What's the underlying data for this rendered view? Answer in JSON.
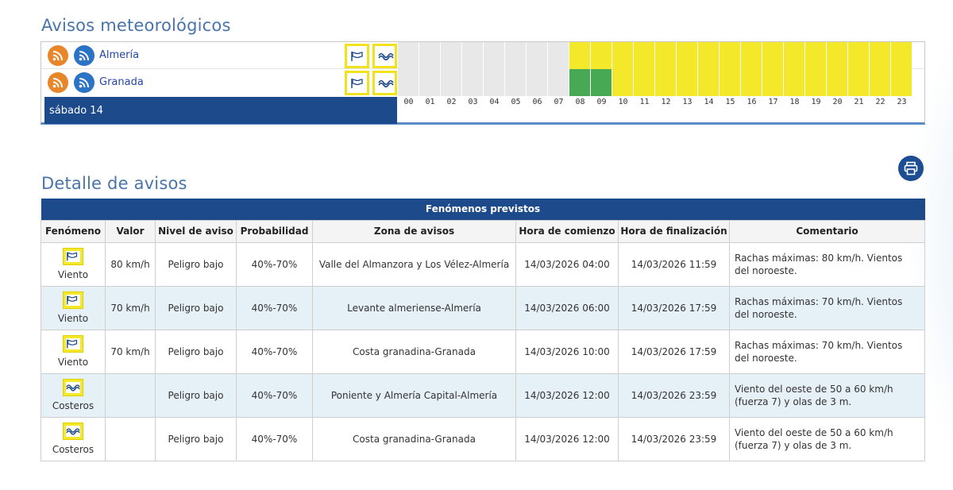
{
  "avisos_title": "Avisos meteorológicos",
  "detalle_title": "Detalle de avisos",
  "timeline": {
    "provinces": [
      {
        "name": "Almería",
        "hour_levels": [
          "grey",
          "grey",
          "grey",
          "grey",
          "grey",
          "grey",
          "grey",
          "grey",
          "yellow",
          "yellow",
          "yellow",
          "yellow",
          "yellow",
          "yellow",
          "yellow",
          "yellow",
          "yellow",
          "yellow",
          "yellow",
          "yellow",
          "yellow",
          "yellow",
          "yellow",
          "yellow"
        ]
      },
      {
        "name": "Granada",
        "hour_levels": [
          "grey",
          "grey",
          "grey",
          "grey",
          "grey",
          "grey",
          "grey",
          "grey",
          "green",
          "green",
          "yellow",
          "yellow",
          "yellow",
          "yellow",
          "yellow",
          "yellow",
          "yellow",
          "yellow",
          "yellow",
          "yellow",
          "yellow",
          "yellow",
          "yellow",
          "yellow"
        ]
      }
    ],
    "day_label": "sábado 14",
    "hours": [
      "00",
      "01",
      "02",
      "03",
      "04",
      "05",
      "06",
      "07",
      "08",
      "09",
      "10",
      "11",
      "12",
      "13",
      "14",
      "15",
      "16",
      "17",
      "18",
      "19",
      "20",
      "21",
      "22",
      "23"
    ],
    "level_colors": {
      "grey": "#e8e8e8",
      "yellow": "#f4e82a",
      "green": "#48a955"
    }
  },
  "table": {
    "caption": "Fenómenos previstos",
    "headers": [
      "Fenómeno",
      "Valor",
      "Nivel de aviso",
      "Probabilidad",
      "Zona de avisos",
      "Hora de comienzo",
      "Hora de finalización",
      "Comentario"
    ],
    "rows": [
      {
        "icon": "wind-icon",
        "fenomeno": "Viento",
        "valor": "80 km/h",
        "nivel": "Peligro bajo",
        "prob": "40%-70%",
        "zona": "Valle del Almanzora y Los Vélez-Almería",
        "inicio": "14/03/2026 04:00",
        "fin": "14/03/2026 11:59",
        "comentario": "Rachas máximas: 80 km/h. Vientos del noroeste."
      },
      {
        "icon": "wind-icon",
        "fenomeno": "Viento",
        "valor": "70 km/h",
        "nivel": "Peligro bajo",
        "prob": "40%-70%",
        "zona": "Levante almeriense-Almería",
        "inicio": "14/03/2026 06:00",
        "fin": "14/03/2026 17:59",
        "comentario": "Rachas máximas: 70 km/h. Vientos del noroeste."
      },
      {
        "icon": "wind-icon",
        "fenomeno": "Viento",
        "valor": "70 km/h",
        "nivel": "Peligro bajo",
        "prob": "40%-70%",
        "zona": "Costa granadina-Granada",
        "inicio": "14/03/2026 10:00",
        "fin": "14/03/2026 17:59",
        "comentario": "Rachas máximas: 70 km/h. Vientos del noroeste."
      },
      {
        "icon": "waves-icon",
        "fenomeno": "Costeros",
        "valor": "",
        "nivel": "Peligro bajo",
        "prob": "40%-70%",
        "zona": "Poniente y Almería Capital-Almería",
        "inicio": "14/03/2026 12:00",
        "fin": "14/03/2026 23:59",
        "comentario": "Viento del oeste de 50 a 60 km/h (fuerza 7) y olas de 3 m."
      },
      {
        "icon": "waves-icon",
        "fenomeno": "Costeros",
        "valor": "",
        "nivel": "Peligro bajo",
        "prob": "40%-70%",
        "zona": "Costa granadina-Granada",
        "inicio": "14/03/2026 12:00",
        "fin": "14/03/2026 23:59",
        "comentario": "Viento del oeste de 50 a 60 km/h (fuerza 7) y olas de 3 m."
      }
    ]
  }
}
